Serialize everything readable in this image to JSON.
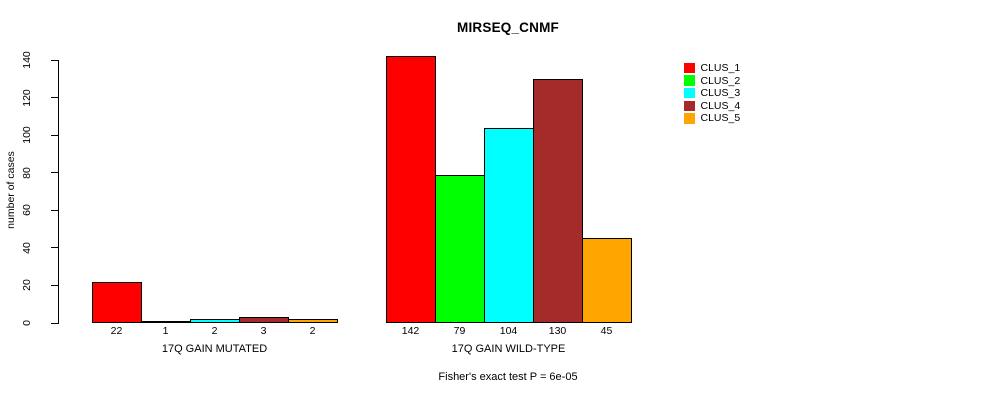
{
  "title": "MIRSEQ_CNMF",
  "chart_data": {
    "type": "bar",
    "title": "MIRSEQ_CNMF",
    "ylabel": "number of cases",
    "xlabel": "",
    "ylim": [
      0,
      140
    ],
    "yticks": [
      0,
      20,
      40,
      60,
      80,
      100,
      120,
      140
    ],
    "grid": false,
    "legend_position": "right",
    "categories": [
      "17Q GAIN MUTATED",
      "17Q GAIN WILD-TYPE"
    ],
    "series": [
      {
        "name": "CLUS_1",
        "color": "#FF0000",
        "values": [
          22,
          142
        ]
      },
      {
        "name": "CLUS_2",
        "color": "#00FF00",
        "values": [
          1,
          79
        ]
      },
      {
        "name": "CLUS_3",
        "color": "#00FFFF",
        "values": [
          2,
          104
        ]
      },
      {
        "name": "CLUS_4",
        "color": "#A52A2A",
        "values": [
          3,
          130
        ]
      },
      {
        "name": "CLUS_5",
        "color": "#FFA500",
        "values": [
          2,
          45
        ]
      }
    ],
    "bar_value_labels": [
      [
        "22",
        "1",
        "2",
        "3",
        "2"
      ],
      [
        "142",
        "79",
        "104",
        "130",
        "45"
      ]
    ],
    "annotation": "Fisher's exact test P = 6e-05",
    "axis_color": "#000000",
    "background": "#FFFFFF"
  }
}
